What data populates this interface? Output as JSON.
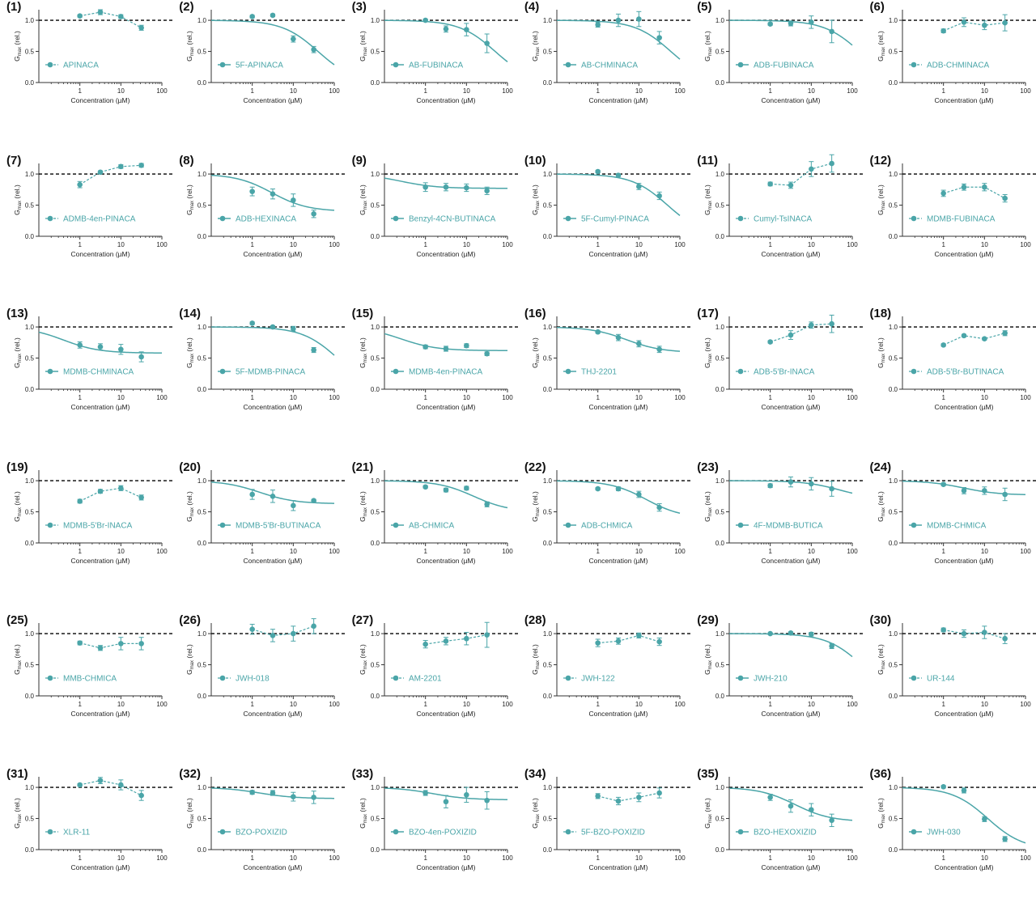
{
  "figure": {
    "accent_color": "#4aa5a8",
    "reference_line_color": "#000000",
    "axis_color": "#333333"
  },
  "axes": {
    "xlabel": "Concentration (µM)",
    "ylabel_main": "G",
    "ylabel_sub": "max",
    "ylabel_suffix": " (rel.)",
    "x_scale": "log",
    "xlim": [
      0.1,
      100
    ],
    "x_ticks": [
      1,
      10,
      100
    ],
    "x_tick_labels": [
      "1",
      "10",
      "100"
    ],
    "ylim": [
      0,
      1.0
    ],
    "y_ticks": [
      0,
      0.5,
      1.0
    ],
    "y_tick_labels": [
      "0.0",
      "0.5",
      "1.0"
    ],
    "reference_y": 1.0
  },
  "chart_data": [
    {
      "num": "(1)",
      "type": "scatter",
      "name": "APINACA",
      "fit": "dashed",
      "x": [
        1,
        3.16,
        10,
        31.6
      ],
      "y": [
        1.07,
        1.13,
        1.06,
        0.88
      ],
      "err": [
        0.02,
        0.04,
        0.03,
        0.04
      ]
    },
    {
      "num": "(2)",
      "type": "scatter",
      "name": "5F-APINACA",
      "fit": "curve",
      "curve": {
        "top": 1.0,
        "bottom": 0.0,
        "ec50": 40
      },
      "x": [
        1,
        3.16,
        10,
        31.6
      ],
      "y": [
        1.06,
        1.08,
        0.7,
        0.53
      ],
      "err": [
        0.02,
        0.02,
        0.05,
        0.05
      ]
    },
    {
      "num": "(3)",
      "type": "scatter",
      "name": "AB-FUBINACA",
      "fit": "curve",
      "curve": {
        "top": 1.0,
        "bottom": 0.0,
        "ec50": 50
      },
      "x": [
        1,
        3.16,
        10,
        31.6
      ],
      "y": [
        1.0,
        0.86,
        0.85,
        0.63
      ],
      "err": [
        0.02,
        0.05,
        0.1,
        0.15
      ]
    },
    {
      "num": "(4)",
      "type": "scatter",
      "name": "AB-CHMINACA",
      "fit": "curve",
      "curve": {
        "top": 1.0,
        "bottom": 0.0,
        "ec50": 60
      },
      "x": [
        1,
        3.16,
        10,
        31.6
      ],
      "y": [
        0.93,
        1.0,
        1.02,
        0.72
      ],
      "err": [
        0.04,
        0.1,
        0.12,
        0.1
      ]
    },
    {
      "num": "(5)",
      "type": "scatter",
      "name": "ADB-FUBINACA",
      "fit": "curve",
      "curve": {
        "top": 1.0,
        "bottom": 0.0,
        "ec50": 150
      },
      "x": [
        1,
        3.16,
        10,
        31.6
      ],
      "y": [
        0.94,
        0.95,
        0.97,
        0.82
      ],
      "err": [
        0.02,
        0.04,
        0.1,
        0.18
      ]
    },
    {
      "num": "(6)",
      "type": "scatter",
      "name": "ADB-CHMINACA",
      "fit": "dashed",
      "x": [
        1,
        3.16,
        10,
        31.6
      ],
      "y": [
        0.83,
        0.97,
        0.92,
        0.96
      ],
      "err": [
        0.03,
        0.07,
        0.07,
        0.13
      ]
    },
    {
      "num": "(7)",
      "type": "scatter",
      "name": "ADMB-4en-PINACA",
      "fit": "dashed",
      "x": [
        1,
        3.16,
        10,
        31.6
      ],
      "y": [
        0.83,
        1.03,
        1.12,
        1.14
      ],
      "err": [
        0.05,
        0.02,
        0.03,
        0.03
      ]
    },
    {
      "num": "(8)",
      "type": "scatter",
      "name": "ADB-HEXINACA",
      "fit": "curve",
      "curve": {
        "top": 1.0,
        "bottom": 0.4,
        "ec50": 3
      },
      "x": [
        1,
        3.16,
        10,
        31.6
      ],
      "y": [
        0.72,
        0.68,
        0.58,
        0.36
      ],
      "err": [
        0.07,
        0.08,
        0.1,
        0.06
      ]
    },
    {
      "num": "(9)",
      "type": "scatter",
      "name": "Benzyl-4CN-BUTINACA",
      "fit": "curve",
      "curve": {
        "top": 1.0,
        "bottom": 0.77,
        "ec50": 0.25
      },
      "x": [
        1,
        3.16,
        10,
        31.6
      ],
      "y": [
        0.79,
        0.79,
        0.78,
        0.73
      ],
      "err": [
        0.07,
        0.06,
        0.06,
        0.06
      ]
    },
    {
      "num": "(10)",
      "type": "scatter",
      "name": "5F-Cumyl-PINACA",
      "fit": "curve",
      "curve": {
        "top": 1.0,
        "bottom": 0.0,
        "ec50": 50
      },
      "x": [
        1,
        3.16,
        10,
        31.6
      ],
      "y": [
        1.04,
        0.98,
        0.8,
        0.65
      ],
      "err": [
        0.02,
        0.02,
        0.05,
        0.06
      ]
    },
    {
      "num": "(11)",
      "type": "scatter",
      "name": "Cumyl-TsINACA",
      "fit": "dashed",
      "x": [
        1,
        3.16,
        10,
        31.6
      ],
      "y": [
        0.84,
        0.82,
        1.08,
        1.17
      ],
      "err": [
        0.03,
        0.05,
        0.12,
        0.14
      ]
    },
    {
      "num": "(12)",
      "type": "scatter",
      "name": "MDMB-FUBINACA",
      "fit": "dashed",
      "x": [
        1,
        3.16,
        10,
        31.6
      ],
      "y": [
        0.69,
        0.79,
        0.79,
        0.61
      ],
      "err": [
        0.05,
        0.05,
        0.06,
        0.06
      ]
    },
    {
      "num": "(13)",
      "type": "scatter",
      "name": "MDMB-CHMINACA",
      "fit": "curve",
      "curve": {
        "top": 1.0,
        "bottom": 0.58,
        "ec50": 0.4
      },
      "x": [
        1,
        3.16,
        10,
        31.6
      ],
      "y": [
        0.71,
        0.68,
        0.64,
        0.52
      ],
      "err": [
        0.05,
        0.05,
        0.08,
        0.08
      ]
    },
    {
      "num": "(14)",
      "type": "scatter",
      "name": "5F-MDMB-PINACA",
      "fit": "curve",
      "curve": {
        "top": 1.0,
        "bottom": 0.0,
        "ec50": 120
      },
      "x": [
        1,
        3.16,
        10,
        31.6
      ],
      "y": [
        1.06,
        1.0,
        0.97,
        0.63
      ],
      "err": [
        0.02,
        0.02,
        0.04,
        0.04
      ]
    },
    {
      "num": "(15)",
      "type": "scatter",
      "name": "MDMB-4en-PINACA",
      "fit": "curve",
      "curve": {
        "top": 1.0,
        "bottom": 0.62,
        "ec50": 0.25
      },
      "x": [
        1,
        3.16,
        10,
        31.6
      ],
      "y": [
        0.68,
        0.65,
        0.7,
        0.57
      ],
      "err": [
        0.03,
        0.04,
        0.03,
        0.03
      ]
    },
    {
      "num": "(16)",
      "type": "scatter",
      "name": "THJ-2201",
      "fit": "curve",
      "curve": {
        "top": 1.0,
        "bottom": 0.59,
        "ec50": 5
      },
      "x": [
        1,
        3.16,
        10,
        31.6
      ],
      "y": [
        0.92,
        0.83,
        0.73,
        0.64
      ],
      "err": [
        0.02,
        0.05,
        0.05,
        0.05
      ]
    },
    {
      "num": "(17)",
      "type": "scatter",
      "name": "ADB-5'Br-INACA",
      "fit": "dashed",
      "x": [
        1,
        3.16,
        10,
        31.6
      ],
      "y": [
        0.76,
        0.87,
        1.03,
        1.05
      ],
      "err": [
        0.02,
        0.07,
        0.05,
        0.14
      ]
    },
    {
      "num": "(18)",
      "type": "scatter",
      "name": "ADB-5'Br-BUTINACA",
      "fit": "dashed",
      "x": [
        1,
        3.16,
        10,
        31.6
      ],
      "y": [
        0.71,
        0.86,
        0.81,
        0.9
      ],
      "err": [
        0.02,
        0.02,
        0.02,
        0.04
      ]
    },
    {
      "num": "(19)",
      "type": "scatter",
      "name": "MDMB-5'Br-INACA",
      "fit": "dashed",
      "x": [
        1,
        3.16,
        10,
        31.6
      ],
      "y": [
        0.67,
        0.83,
        0.88,
        0.73
      ],
      "err": [
        0.03,
        0.03,
        0.04,
        0.04
      ]
    },
    {
      "num": "(20)",
      "type": "scatter",
      "name": "MDMB-5'Br-BUTINACA",
      "fit": "curve",
      "curve": {
        "top": 1.0,
        "bottom": 0.63,
        "ec50": 1.5
      },
      "x": [
        1,
        3.16,
        10,
        31.6
      ],
      "y": [
        0.78,
        0.75,
        0.6,
        0.68
      ],
      "err": [
        0.08,
        0.1,
        0.08,
        0.02
      ]
    },
    {
      "num": "(21)",
      "type": "scatter",
      "name": "AB-CHMICA",
      "fit": "curve",
      "curve": {
        "top": 1.0,
        "bottom": 0.5,
        "ec50": 15
      },
      "x": [
        1,
        3.16,
        10,
        31.6
      ],
      "y": [
        0.9,
        0.85,
        0.88,
        0.62
      ],
      "err": [
        0.02,
        0.03,
        0.03,
        0.04
      ]
    },
    {
      "num": "(22)",
      "type": "scatter",
      "name": "ADB-CHMICA",
      "fit": "curve",
      "curve": {
        "top": 1.0,
        "bottom": 0.4,
        "ec50": 15
      },
      "x": [
        1,
        3.16,
        10,
        31.6
      ],
      "y": [
        0.87,
        0.87,
        0.78,
        0.57
      ],
      "err": [
        0.02,
        0.03,
        0.05,
        0.06
      ]
    },
    {
      "num": "(23)",
      "type": "scatter",
      "name": "4F-MDMB-BUTICA",
      "fit": "curve",
      "curve": {
        "top": 1.0,
        "bottom": 0.7,
        "ec50": 50
      },
      "x": [
        1,
        3.16,
        10,
        31.6
      ],
      "y": [
        0.92,
        0.98,
        0.95,
        0.87
      ],
      "err": [
        0.03,
        0.08,
        0.1,
        0.12
      ]
    },
    {
      "num": "(24)",
      "type": "scatter",
      "name": "MDMB-CHMICA",
      "fit": "curve",
      "curve": {
        "top": 1.0,
        "bottom": 0.77,
        "ec50": 3
      },
      "x": [
        1,
        3.16,
        10,
        31.6
      ],
      "y": [
        0.94,
        0.84,
        0.84,
        0.78
      ],
      "err": [
        0.02,
        0.05,
        0.06,
        0.1
      ]
    },
    {
      "num": "(25)",
      "type": "scatter",
      "name": "MMB-CHMICA",
      "fit": "dashed",
      "x": [
        1,
        3.16,
        10,
        31.6
      ],
      "y": [
        0.85,
        0.77,
        0.84,
        0.84
      ],
      "err": [
        0.03,
        0.04,
        0.1,
        0.1
      ]
    },
    {
      "num": "(26)",
      "type": "scatter",
      "name": "JWH-018",
      "fit": "dashed",
      "x": [
        1,
        3.16,
        10,
        31.6
      ],
      "y": [
        1.07,
        0.97,
        1.0,
        1.12
      ],
      "err": [
        0.08,
        0.1,
        0.12,
        0.12
      ]
    },
    {
      "num": "(27)",
      "type": "scatter",
      "name": "AM-2201",
      "fit": "dashed",
      "x": [
        1,
        3.16,
        10,
        31.6
      ],
      "y": [
        0.83,
        0.88,
        0.92,
        0.98
      ],
      "err": [
        0.06,
        0.06,
        0.1,
        0.2
      ]
    },
    {
      "num": "(28)",
      "type": "scatter",
      "name": "JWH-122",
      "fit": "dashed",
      "x": [
        1,
        3.16,
        10,
        31.6
      ],
      "y": [
        0.85,
        0.88,
        0.97,
        0.87
      ],
      "err": [
        0.06,
        0.05,
        0.04,
        0.06
      ]
    },
    {
      "num": "(29)",
      "type": "scatter",
      "name": "JWH-210",
      "fit": "curve",
      "curve": {
        "top": 1.0,
        "bottom": 0.0,
        "ec50": 170
      },
      "x": [
        1,
        3.16,
        10,
        31.6
      ],
      "y": [
        1.0,
        1.01,
        0.99,
        0.8
      ],
      "err": [
        0.01,
        0.02,
        0.03,
        0.04
      ]
    },
    {
      "num": "(30)",
      "type": "scatter",
      "name": "UR-144",
      "fit": "dashed",
      "x": [
        1,
        3.16,
        10,
        31.6
      ],
      "y": [
        1.06,
        1.0,
        1.02,
        0.92
      ],
      "err": [
        0.03,
        0.06,
        0.1,
        0.08
      ]
    },
    {
      "num": "(31)",
      "type": "scatter",
      "name": "XLR-11",
      "fit": "dashed",
      "x": [
        1,
        3.16,
        10,
        31.6
      ],
      "y": [
        1.04,
        1.11,
        1.04,
        0.87
      ],
      "err": [
        0.02,
        0.05,
        0.08,
        0.08
      ]
    },
    {
      "num": "(32)",
      "type": "scatter",
      "name": "BZO-POXIZID",
      "fit": "curve",
      "curve": {
        "top": 1.0,
        "bottom": 0.82,
        "ec50": 1.5
      },
      "x": [
        1,
        3.16,
        10,
        31.6
      ],
      "y": [
        0.92,
        0.91,
        0.85,
        0.84
      ],
      "err": [
        0.03,
        0.04,
        0.07,
        0.1
      ]
    },
    {
      "num": "(33)",
      "type": "scatter",
      "name": "BZO-4en-POXIZID",
      "fit": "curve",
      "curve": {
        "top": 1.0,
        "bottom": 0.8,
        "ec50": 1.5
      },
      "x": [
        1,
        3.16,
        10,
        31.6
      ],
      "y": [
        0.91,
        0.77,
        0.88,
        0.79
      ],
      "err": [
        0.04,
        0.1,
        0.12,
        0.14
      ]
    },
    {
      "num": "(34)",
      "type": "scatter",
      "name": "5F-BZO-POXIZID",
      "fit": "dashed",
      "x": [
        1,
        3.16,
        10,
        31.6
      ],
      "y": [
        0.86,
        0.78,
        0.84,
        0.91
      ],
      "err": [
        0.04,
        0.06,
        0.07,
        0.08
      ]
    },
    {
      "num": "(35)",
      "type": "scatter",
      "name": "BZO-HEXOXIZID",
      "fit": "curve",
      "curve": {
        "top": 1.0,
        "bottom": 0.45,
        "ec50": 4
      },
      "x": [
        1,
        3.16,
        10,
        31.6
      ],
      "y": [
        0.84,
        0.7,
        0.64,
        0.47
      ],
      "err": [
        0.05,
        0.1,
        0.1,
        0.1
      ]
    },
    {
      "num": "(36)",
      "type": "scatter",
      "name": "JWH-030",
      "fit": "curve",
      "curve": {
        "top": 1.0,
        "bottom": 0.0,
        "ec50": 12
      },
      "x": [
        1,
        3.16,
        10,
        31.6
      ],
      "y": [
        1.01,
        0.95,
        0.49,
        0.17
      ],
      "err": [
        0.02,
        0.04,
        0.04,
        0.04
      ]
    }
  ]
}
